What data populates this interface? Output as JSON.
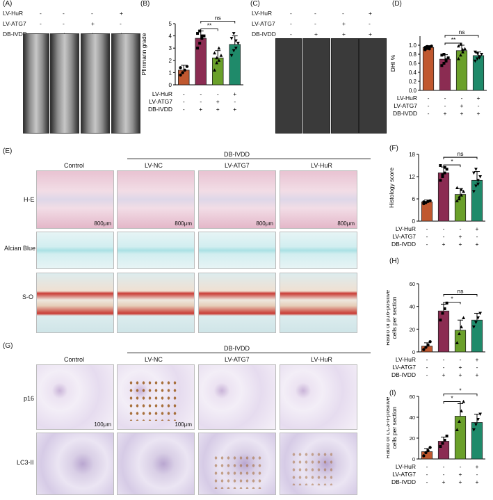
{
  "panels": {
    "A": "(A)",
    "B": "(B)",
    "C": "(C)",
    "D": "(D)",
    "E": "(E)",
    "F": "(F)",
    "G": "(G)",
    "H": "(H)",
    "I": "(I)"
  },
  "conditions": {
    "hur": "LV-HuR",
    "atg7": "LV-ATG7",
    "ivdd": "DB-IVDD",
    "hur_signs": [
      "-",
      "-",
      "-",
      "+"
    ],
    "atg7_signs": [
      "-",
      "-",
      "+",
      "-"
    ],
    "ivdd_signs": [
      "-",
      "+",
      "+",
      "+"
    ]
  },
  "panelE": {
    "group_label": "DB-IVDD",
    "col_labels": [
      "Control",
      "LV-NC",
      "LV-ATG7",
      "LV-HuR"
    ],
    "row_labels": [
      "H-E",
      "Alcian Blue",
      "S-O"
    ],
    "scale": "800μm"
  },
  "panelG": {
    "group_label": "DB-IVDD",
    "col_labels": [
      "Control",
      "LV-NC",
      "LV-ATG7",
      "LV-HuR"
    ],
    "row_labels": [
      "p16",
      "LC3-II"
    ],
    "scale": "100μm"
  },
  "colors": {
    "control": "#c0582f",
    "lvnc": "#8b2c52",
    "atg7": "#6aa02a",
    "hur": "#1f8a6a"
  },
  "chart_data": [
    {
      "id": "B",
      "type": "bar",
      "ylabel": "Pfirrmann grade",
      "ylim": [
        0,
        5
      ],
      "yticks": [
        0,
        1,
        2,
        3,
        4,
        5
      ],
      "values": [
        1.2,
        3.8,
        2.2,
        3.3
      ],
      "errors": [
        0.4,
        0.6,
        0.6,
        0.7
      ],
      "points": [
        [
          0.8,
          1.0,
          1.2,
          1.5,
          1.4
        ],
        [
          3.0,
          3.4,
          3.8,
          4.0,
          4.2,
          4.4,
          4.0
        ],
        [
          1.2,
          1.8,
          2.0,
          2.4,
          2.6,
          2.2,
          3.0
        ],
        [
          2.4,
          2.8,
          3.0,
          3.4,
          3.8,
          4.2,
          3.6
        ]
      ],
      "annotations": [
        {
          "text": "**",
          "from": 1,
          "to": 2
        },
        {
          "text": "ns",
          "from": 1,
          "to": 3
        }
      ]
    },
    {
      "id": "D",
      "type": "bar",
      "ylabel": "DHI %",
      "ylim": [
        0.0,
        1.2
      ],
      "yticks": [
        0.0,
        0.2,
        0.4,
        0.6,
        0.8,
        1.0
      ],
      "ytick_labels": [
        "0.0",
        "0.2",
        "0.4",
        "0.6",
        "0.8",
        "1.0"
      ],
      "values": [
        0.95,
        0.69,
        0.88,
        0.77
      ],
      "errors": [
        0.04,
        0.1,
        0.12,
        0.08
      ],
      "points": [
        [
          0.9,
          0.93,
          0.96,
          0.98,
          0.95,
          0.97,
          0.92
        ],
        [
          0.55,
          0.6,
          0.65,
          0.72,
          0.78,
          0.8,
          0.68
        ],
        [
          0.7,
          0.78,
          0.85,
          0.92,
          0.98,
          1.02,
          0.9
        ],
        [
          0.65,
          0.7,
          0.75,
          0.8,
          0.85,
          0.82,
          0.72
        ]
      ],
      "annotations": [
        {
          "text": "**",
          "from": 1,
          "to": 2
        },
        {
          "text": "ns",
          "from": 1,
          "to": 3
        }
      ]
    },
    {
      "id": "F",
      "type": "bar",
      "ylabel": "Histology score",
      "ylim": [
        0,
        18
      ],
      "yticks": [
        0,
        6,
        12,
        18
      ],
      "values": [
        5.2,
        13.0,
        7.2,
        11.0
      ],
      "errors": [
        0.5,
        1.6,
        1.6,
        2.4
      ],
      "points": [
        [
          4.7,
          5.0,
          5.3,
          5.5,
          5.2
        ],
        [
          11.0,
          12.0,
          13.0,
          14.0,
          15.0,
          12.5,
          14.5
        ],
        [
          5.5,
          6.5,
          7.0,
          8.0,
          9.0,
          6.0,
          8.5
        ],
        [
          8.0,
          9.5,
          11.0,
          12.0,
          13.0,
          14.0,
          10.0
        ]
      ],
      "annotations": [
        {
          "text": "*",
          "from": 1,
          "to": 2
        },
        {
          "text": "ns",
          "from": 1,
          "to": 3
        }
      ]
    },
    {
      "id": "H",
      "type": "bar",
      "ylabel": "Radio of p16-positive cells per section",
      "ylim": [
        0,
        60
      ],
      "yticks": [
        0,
        20,
        40,
        60
      ],
      "values": [
        5,
        36,
        19,
        28
      ],
      "errors": [
        3,
        6,
        9,
        6
      ],
      "points": [
        [
          2,
          4,
          6,
          9
        ],
        [
          28,
          34,
          38,
          43
        ],
        [
          8,
          16,
          22,
          30
        ],
        [
          22,
          26,
          30,
          34
        ]
      ],
      "annotations": [
        {
          "text": "*",
          "from": 1,
          "to": 2
        },
        {
          "text": "ns",
          "from": 1,
          "to": 3
        }
      ]
    },
    {
      "id": "I",
      "type": "bar",
      "ylabel": "Radio of LC3-II-positive cells per section",
      "ylim": [
        0,
        60
      ],
      "yticks": [
        0,
        20,
        40,
        60
      ],
      "values": [
        7,
        17,
        41,
        35
      ],
      "errors": [
        3,
        4,
        12,
        8
      ],
      "points": [
        [
          3,
          6,
          8,
          11
        ],
        [
          12,
          15,
          18,
          22
        ],
        [
          28,
          36,
          46,
          55
        ],
        [
          28,
          33,
          38,
          43
        ]
      ],
      "annotations": [
        {
          "text": "*",
          "from": 1,
          "to": 2
        },
        {
          "text": "*",
          "from": 1,
          "to": 3
        }
      ]
    }
  ]
}
